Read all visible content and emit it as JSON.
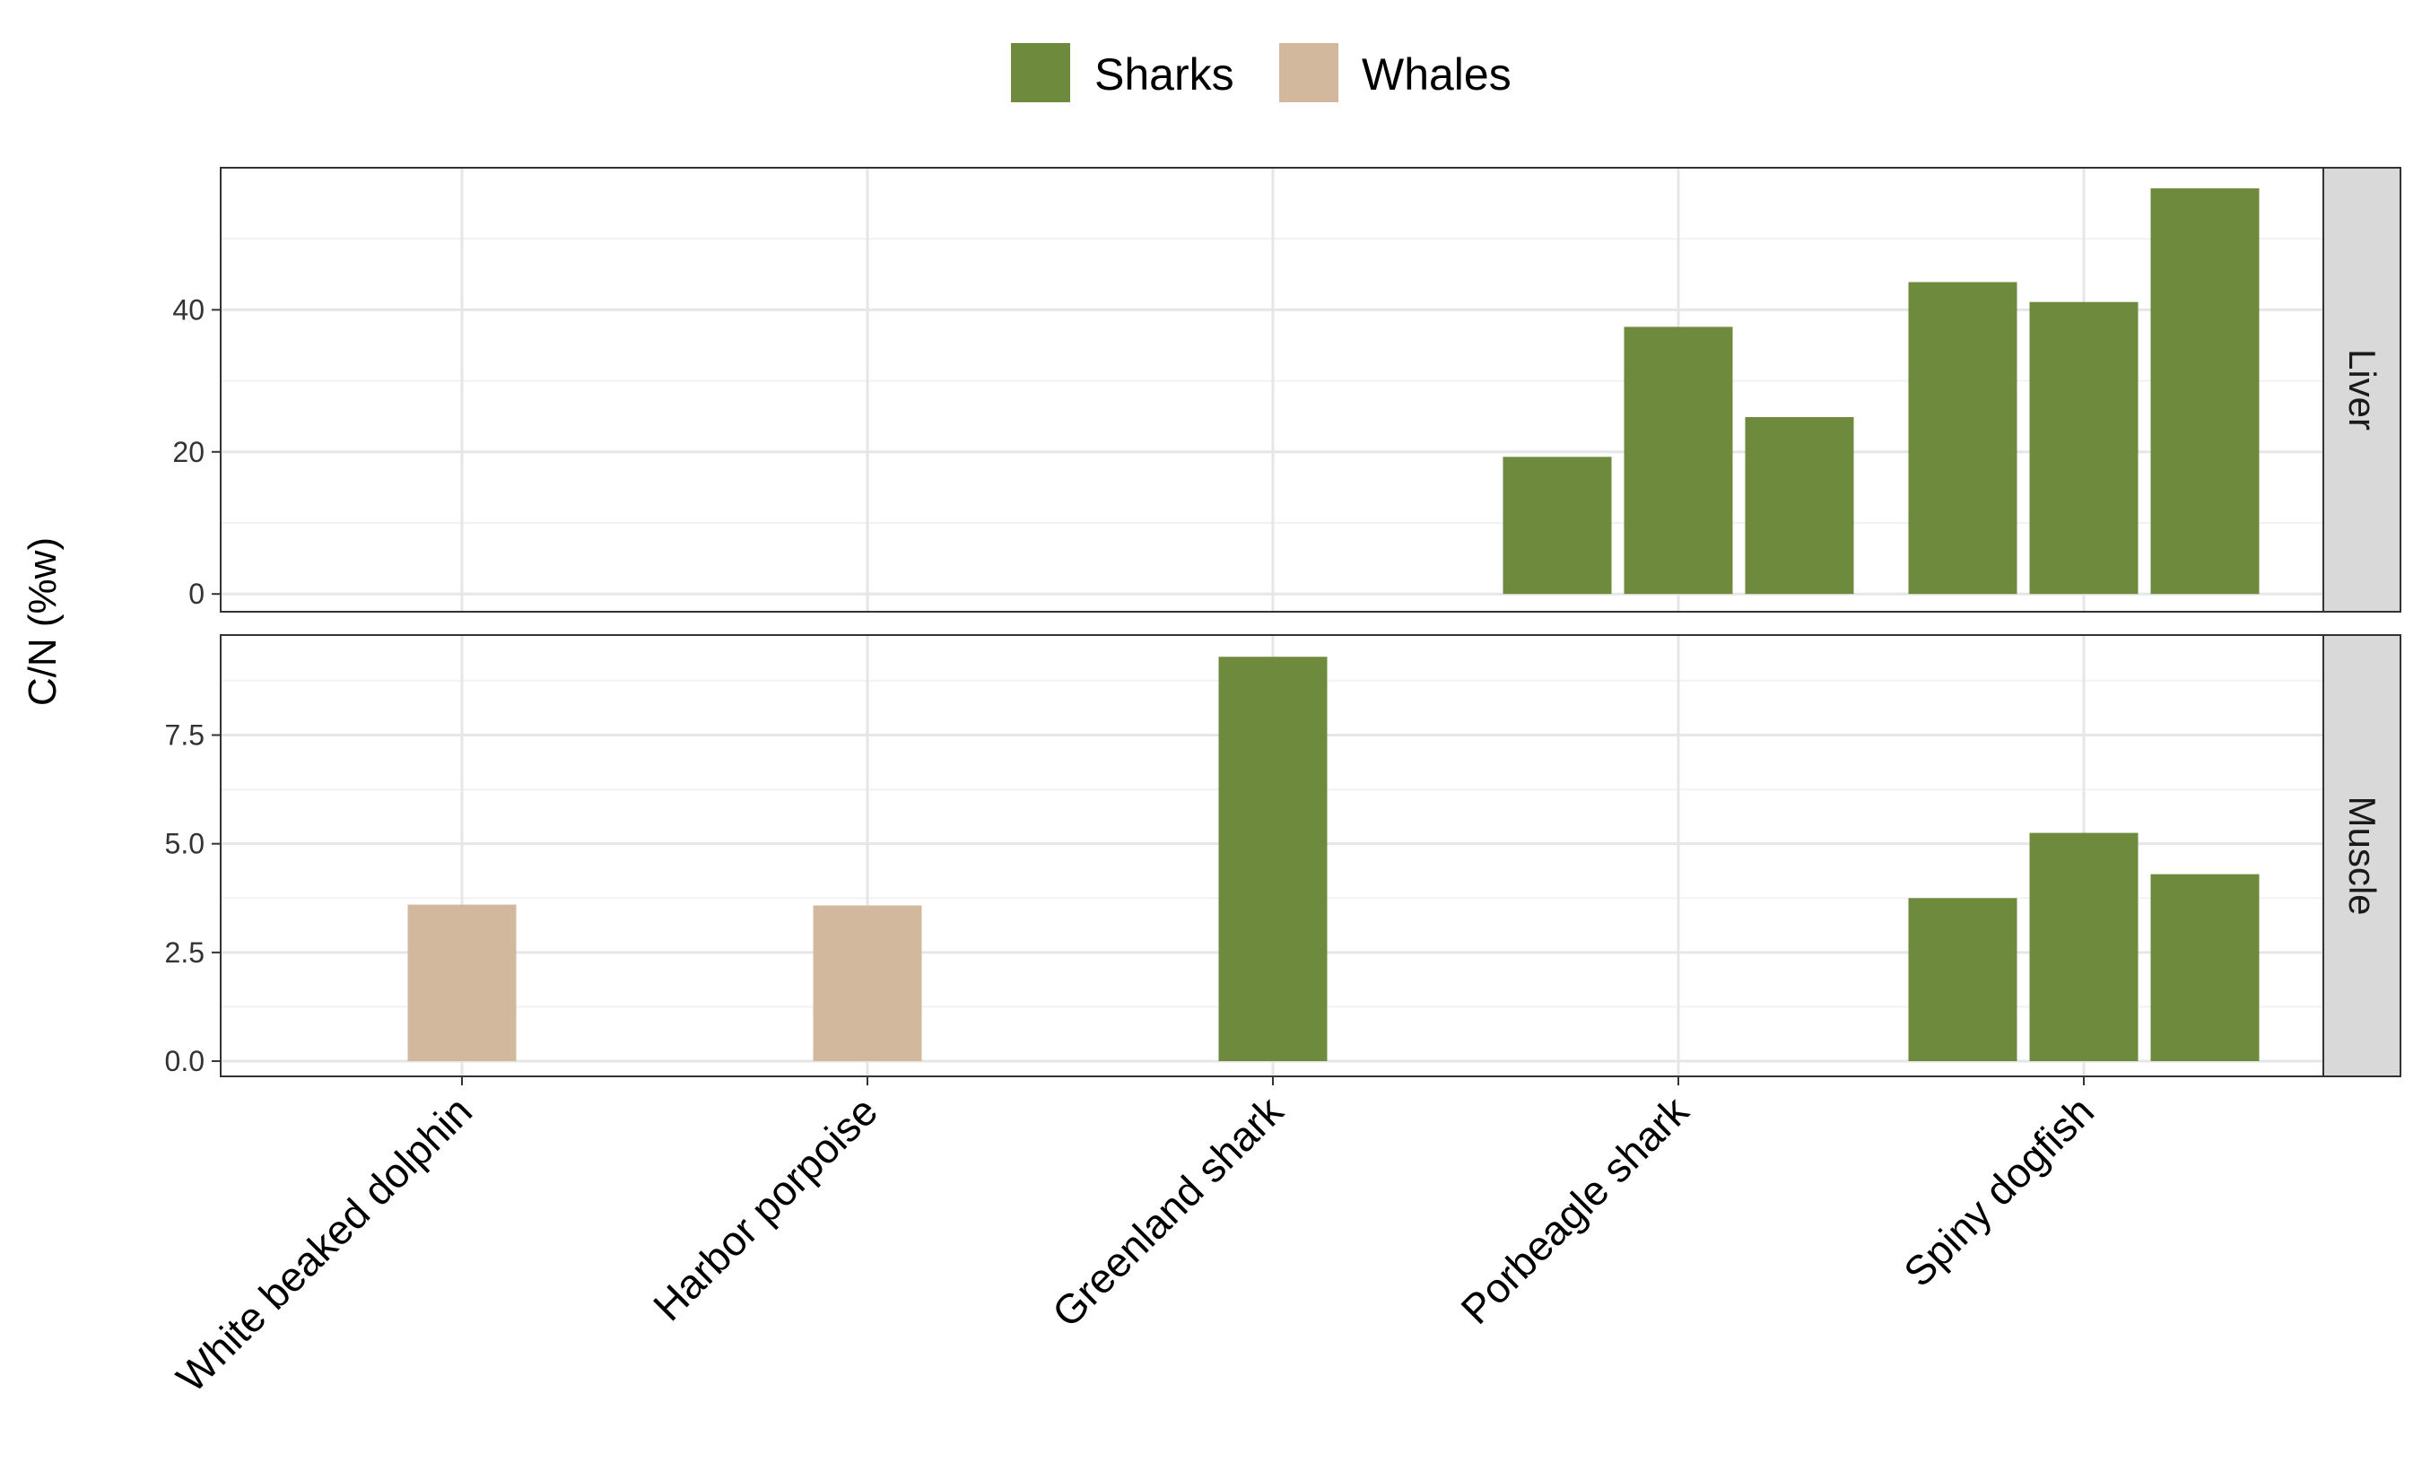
{
  "chart_data": {
    "type": "bar",
    "ylabel": "C/N (%w)",
    "xlabel": "",
    "categories": [
      "White beaked dolphin",
      "Harbor porpoise",
      "Greenland shark",
      "Porbeagle shark",
      "Spiny dogfish"
    ],
    "legend": {
      "position": "top",
      "items": [
        {
          "name": "Sharks",
          "color": "#6E8B3D"
        },
        {
          "name": "Whales",
          "color": "#D2B99E"
        }
      ]
    },
    "grid": true,
    "facets": [
      {
        "label": "Liver",
        "ylim": [
          -2.5,
          60
        ],
        "ticks": [
          0,
          20,
          40
        ],
        "tick_labels": [
          "0",
          "20",
          "40"
        ],
        "bars": [
          {
            "category": "Porbeagle shark",
            "group": "Sharks",
            "values": [
              19.3,
              37.6,
              24.9
            ]
          },
          {
            "category": "Spiny dogfish",
            "group": "Sharks",
            "values": [
              43.9,
              41.1,
              57.1
            ]
          }
        ]
      },
      {
        "label": "Muscle",
        "ylim": [
          -0.35,
          9.8
        ],
        "ticks": [
          0,
          2.5,
          5,
          7.5
        ],
        "tick_labels": [
          "0.0",
          "2.5",
          "5.0",
          "7.5"
        ],
        "bars": [
          {
            "category": "White beaked dolphin",
            "group": "Whales",
            "values": [
              3.6
            ]
          },
          {
            "category": "Harbor porpoise",
            "group": "Whales",
            "values": [
              3.58
            ]
          },
          {
            "category": "Greenland shark",
            "group": "Sharks",
            "values": [
              9.3
            ]
          },
          {
            "category": "Spiny dogfish",
            "group": "Sharks",
            "values": [
              3.75,
              5.25,
              4.3
            ]
          }
        ]
      }
    ]
  }
}
